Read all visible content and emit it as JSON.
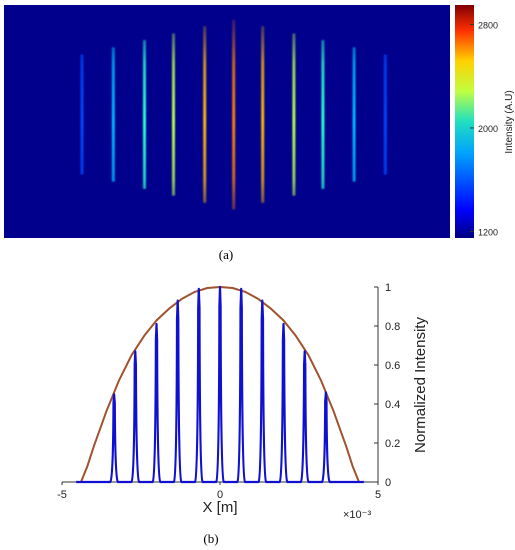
{
  "panel_a": {
    "caption": "(a)",
    "colorbar": {
      "label": "Intensity (A.U)",
      "ticks": [
        "2800",
        "2000",
        "1200"
      ],
      "tick_values": [
        2800,
        2000,
        1200
      ],
      "range": [
        1150,
        2950
      ]
    }
  },
  "panel_b": {
    "caption": "(b)",
    "xlabel": "X [m]",
    "ylabel": "Normalized Intensity",
    "x_exponent": "×10⁻³",
    "x_ticks": [
      "-5",
      "0",
      "5"
    ],
    "y_ticks": [
      "0",
      "0.2",
      "0.4",
      "0.6",
      "0.8",
      "1"
    ]
  },
  "chart_data": [
    {
      "type": "heatmap",
      "title": "",
      "colorbar_label": "Intensity (A.U)",
      "colorbar_ticks": [
        1200,
        2000,
        2800
      ],
      "value_range": [
        1150,
        2950
      ],
      "background_value": 1200,
      "fringes": [
        {
          "rel_x": -0.34,
          "peak": 1500
        },
        {
          "rel_x": -0.27,
          "peak": 1700
        },
        {
          "rel_x": -0.2,
          "peak": 1900
        },
        {
          "rel_x": -0.135,
          "peak": 2150
        },
        {
          "rel_x": -0.065,
          "peak": 2400
        },
        {
          "rel_x": 0.0,
          "peak": 2500
        },
        {
          "rel_x": 0.065,
          "peak": 2400
        },
        {
          "rel_x": 0.135,
          "peak": 2150
        },
        {
          "rel_x": 0.2,
          "peak": 1900
        },
        {
          "rel_x": 0.27,
          "peak": 1700
        },
        {
          "rel_x": 0.34,
          "peak": 1500
        }
      ]
    },
    {
      "type": "line",
      "xlabel": "X [m]",
      "ylabel": "Normalized Intensity",
      "x_scale": "x10^-3",
      "xlim": [
        -5,
        5
      ],
      "ylim": [
        0,
        1
      ],
      "series": [
        {
          "color": "#a0522d",
          "x": [
            -4.4,
            -4.2,
            -4.0,
            -3.6,
            -3.2,
            -2.8,
            -2.4,
            -2.0,
            -1.6,
            -1.2,
            -0.8,
            -0.4,
            0.0,
            0.4,
            0.8,
            1.2,
            1.6,
            2.0,
            2.4,
            2.8,
            3.2,
            3.6,
            4.0,
            4.2,
            4.4
          ],
          "y": [
            0.0,
            0.08,
            0.18,
            0.36,
            0.52,
            0.65,
            0.75,
            0.83,
            0.89,
            0.94,
            0.975,
            0.995,
            1.0,
            0.995,
            0.975,
            0.94,
            0.89,
            0.83,
            0.75,
            0.65,
            0.52,
            0.36,
            0.18,
            0.08,
            0.0
          ]
        },
        {
          "color": "#1010d0",
          "type": "peaks",
          "peak_x": [
            -3.35,
            -2.68,
            -2.01,
            -1.34,
            -0.67,
            0.0,
            0.67,
            1.34,
            2.01,
            2.68,
            3.35
          ],
          "peak_y": [
            0.45,
            0.67,
            0.81,
            0.93,
            0.99,
            1.0,
            0.99,
            0.93,
            0.81,
            0.67,
            0.46
          ],
          "peak_halfwidth": 0.12
        }
      ]
    }
  ]
}
